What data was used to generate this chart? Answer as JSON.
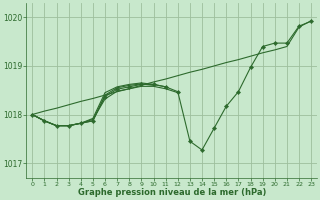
{
  "background_color": "#c8e8cc",
  "grid_color": "#9dbf9d",
  "line_color": "#2d6a2d",
  "text_color": "#2d6a2d",
  "xlabel": "Graphe pression niveau de la mer (hPa)",
  "ylim": [
    1016.7,
    1020.3
  ],
  "xlim": [
    -0.5,
    23.5
  ],
  "yticks": [
    1017,
    1018,
    1019,
    1020
  ],
  "xticks": [
    0,
    1,
    2,
    3,
    4,
    5,
    6,
    7,
    8,
    9,
    10,
    11,
    12,
    13,
    14,
    15,
    16,
    17,
    18,
    19,
    20,
    21,
    22,
    23
  ],
  "trend_line": [
    1018.0,
    1018.07,
    1018.13,
    1018.2,
    1018.27,
    1018.33,
    1018.4,
    1018.47,
    1018.53,
    1018.6,
    1018.67,
    1018.73,
    1018.8,
    1018.87,
    1018.93,
    1019.0,
    1019.07,
    1019.13,
    1019.2,
    1019.27,
    1019.33,
    1019.4,
    1019.8,
    1019.93
  ],
  "main_line": [
    1018.0,
    1017.87,
    1017.77,
    1017.77,
    1017.82,
    1017.87,
    1018.37,
    1018.52,
    1018.57,
    1018.62,
    1018.62,
    1018.57,
    1018.47,
    1017.45,
    1017.27,
    1017.72,
    1018.17,
    1018.47,
    1018.97,
    1019.4,
    1019.47,
    1019.47,
    1019.82,
    1019.92
  ],
  "extra_line1": [
    1018.0,
    1017.87,
    1017.77,
    1017.77,
    1017.82,
    1017.92,
    1018.45,
    1018.57,
    1018.62,
    1018.65,
    1018.62,
    1018.57,
    null,
    null,
    null,
    null,
    null,
    null,
    null,
    null,
    null,
    null,
    null,
    null
  ],
  "extra_line2": [
    1018.0,
    1017.87,
    1017.77,
    1017.77,
    1017.82,
    1017.87,
    1018.4,
    1018.55,
    1018.6,
    1018.63,
    1018.6,
    null,
    null,
    null,
    null,
    null,
    null,
    null,
    null,
    null,
    null,
    null,
    null,
    null
  ],
  "extra_line3": [
    1018.0,
    1017.87,
    1017.77,
    1017.77,
    1017.82,
    1017.9,
    1018.32,
    1018.48,
    1018.53,
    1018.58,
    1018.58,
    1018.53,
    1018.45,
    null,
    null,
    null,
    null,
    null,
    null,
    null,
    null,
    null,
    null,
    null
  ]
}
